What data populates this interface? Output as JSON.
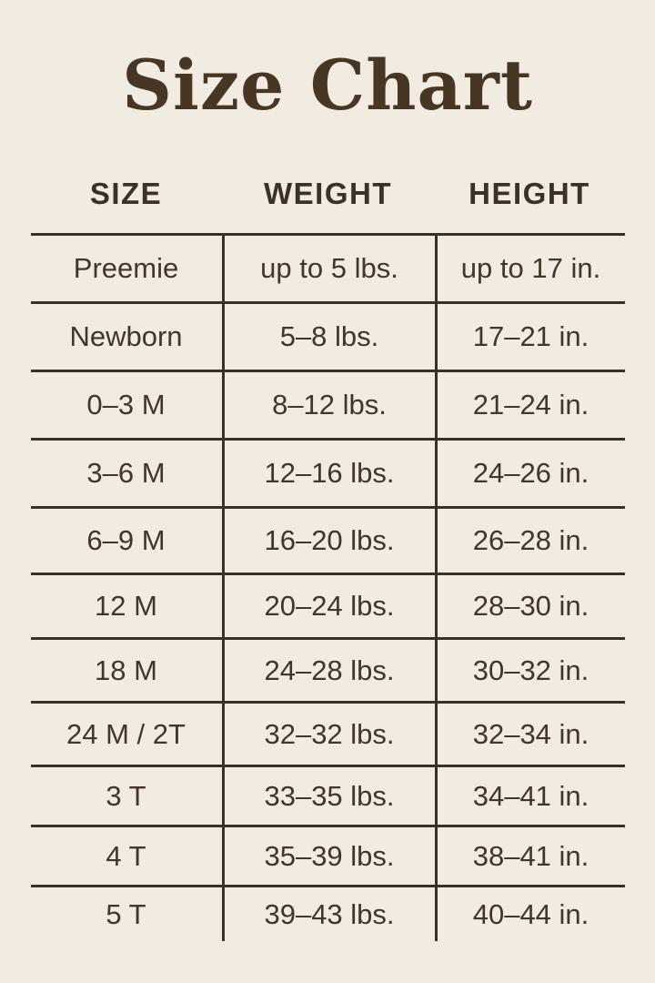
{
  "title": "Size Chart",
  "colors": {
    "background": "#f2ebe1",
    "title_text": "#483625",
    "body_text": "#42352a",
    "table_lines": "#3b3026"
  },
  "chart_data": {
    "type": "table",
    "title": "Size Chart",
    "columns": [
      "SIZE",
      "WEIGHT",
      "HEIGHT"
    ],
    "rows": [
      [
        "Preemie",
        "up to 5 lbs.",
        "up to 17 in."
      ],
      [
        "Newborn",
        "5–8 lbs.",
        "17–21 in."
      ],
      [
        "0–3 M",
        "8–12 lbs.",
        "21–24 in."
      ],
      [
        "3–6 M",
        "12–16 lbs.",
        "24–26 in."
      ],
      [
        "6–9 M",
        "16–20 lbs.",
        "26–28 in."
      ],
      [
        "12 M",
        "20–24 lbs.",
        "28–30 in."
      ],
      [
        "18 M",
        "24–28 lbs.",
        "30–32 in."
      ],
      [
        "24 M / 2T",
        "32–32 lbs.",
        "32–34 in."
      ],
      [
        "3 T",
        "33–35 lbs.",
        "34–41 in."
      ],
      [
        "4 T",
        "35–39 lbs.",
        "38–41 in."
      ],
      [
        "5 T",
        "39–43 lbs.",
        "40–44 in."
      ]
    ]
  }
}
